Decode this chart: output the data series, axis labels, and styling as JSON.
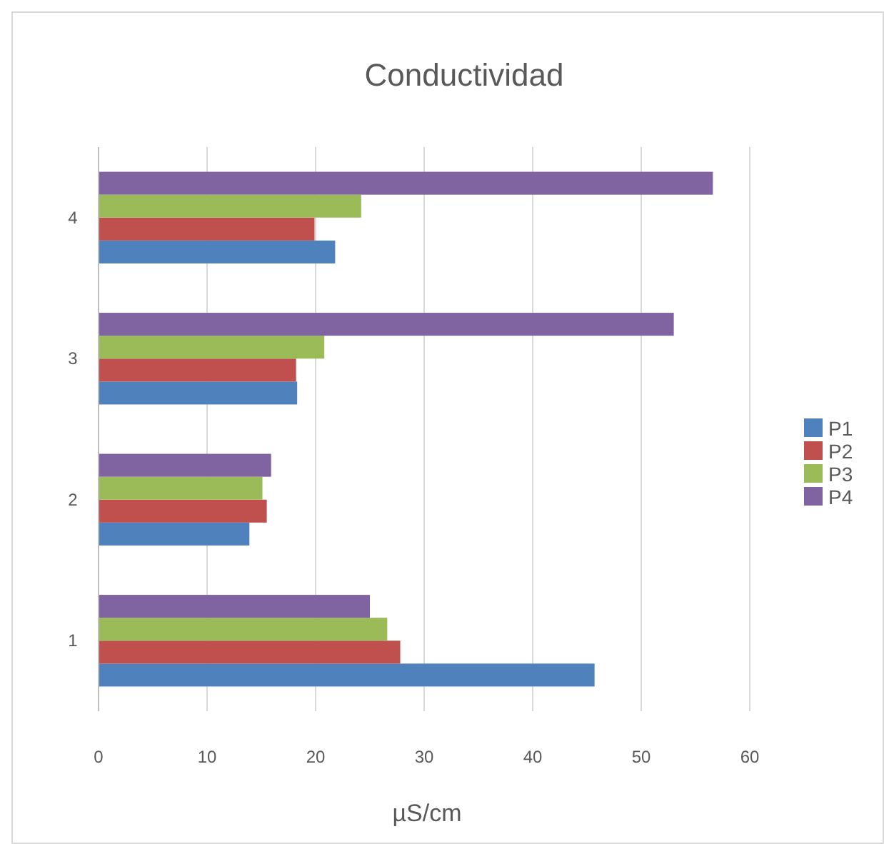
{
  "chart_data": {
    "type": "bar",
    "orientation": "horizontal",
    "title": "Conductividad",
    "xlabel": "µS/cm",
    "categories": [
      "4",
      "3",
      "2",
      "1"
    ],
    "series": [
      {
        "name": "P1",
        "color": "#4f81bd",
        "values": [
          21.8,
          18.3,
          13.9,
          45.7
        ]
      },
      {
        "name": "P2",
        "color": "#c0504d",
        "values": [
          19.9,
          18.2,
          15.5,
          27.8
        ]
      },
      {
        "name": "P3",
        "color": "#9bbb59",
        "values": [
          24.2,
          20.8,
          15.1,
          26.6
        ]
      },
      {
        "name": "P4",
        "color": "#8064a2",
        "values": [
          56.6,
          53.0,
          15.9,
          25.0
        ]
      }
    ],
    "xlim": [
      0,
      60
    ],
    "xticks": [
      0,
      10,
      20,
      30,
      40,
      50,
      60
    ],
    "grid": "x",
    "legend": "right"
  }
}
